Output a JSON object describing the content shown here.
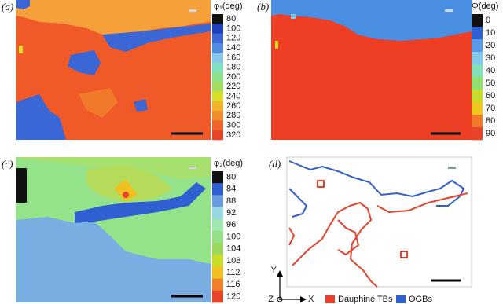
{
  "panels": [
    {
      "label": "(a)",
      "colorbar": {
        "title": "φ₁(deg)",
        "ticks": [
          80,
          100,
          120,
          140,
          160,
          180,
          200,
          220,
          240,
          260,
          280,
          300,
          320
        ],
        "colors": [
          "#111111",
          "#1f3fbf",
          "#3a66d6",
          "#4f8be0",
          "#86c6ec",
          "#7fe0c2",
          "#8fe08a",
          "#a4dc5c",
          "#d8dc2a",
          "#f0b226",
          "#f08c2a",
          "#f0662a",
          "#e8442a"
        ]
      }
    },
    {
      "label": "(b)",
      "colorbar": {
        "title": "Φ(deg)",
        "ticks": [
          0,
          10,
          20,
          30,
          40,
          50,
          60,
          70,
          80,
          90
        ],
        "colors": [
          "#111111",
          "#2f5fd0",
          "#5a9ae6",
          "#86c8ec",
          "#84e0b8",
          "#92e070",
          "#c8dc30",
          "#f0c820",
          "#f07a2a",
          "#e8442a"
        ]
      }
    },
    {
      "label": "(c)",
      "colorbar": {
        "title": "φ₂(deg)",
        "ticks": [
          80,
          84,
          88,
          92,
          96,
          100,
          104,
          108,
          112,
          116,
          120
        ],
        "colors": [
          "#111111",
          "#2f5fd0",
          "#6a9ae0",
          "#96d8e0",
          "#9ee8b0",
          "#96e088",
          "#9cd85c",
          "#c8dc2a",
          "#f0c020",
          "#f0802a",
          "#e8442a"
        ]
      }
    },
    {
      "label": "(d)"
    }
  ],
  "legend": [
    {
      "name": "Dauphiné TBs",
      "color": "#e8402a"
    },
    {
      "name": "OGBs",
      "color": "#2f5fd0"
    }
  ],
  "axes": {
    "y": "Y",
    "x": "X",
    "z": "Z"
  }
}
